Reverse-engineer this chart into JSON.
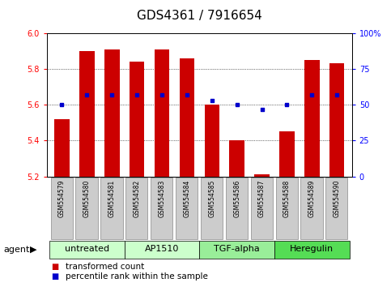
{
  "title": "GDS4361 / 7916654",
  "samples": [
    "GSM554579",
    "GSM554580",
    "GSM554581",
    "GSM554582",
    "GSM554583",
    "GSM554584",
    "GSM554585",
    "GSM554586",
    "GSM554587",
    "GSM554588",
    "GSM554589",
    "GSM554590"
  ],
  "transformed_count": [
    5.52,
    5.9,
    5.91,
    5.84,
    5.91,
    5.86,
    5.6,
    5.4,
    5.21,
    5.45,
    5.85,
    5.83
  ],
  "percentile_rank": [
    50,
    57,
    57,
    57,
    57,
    57,
    53,
    50,
    47,
    50,
    57,
    57
  ],
  "ylim_left": [
    5.2,
    6.0
  ],
  "ylim_right": [
    0,
    100
  ],
  "yticks_left": [
    5.2,
    5.4,
    5.6,
    5.8,
    6.0
  ],
  "yticks_right": [
    0,
    25,
    50,
    75,
    100
  ],
  "ytick_labels_right": [
    "0",
    "25",
    "50",
    "75",
    "100%"
  ],
  "bar_color": "#cc0000",
  "dot_color": "#0000cc",
  "bar_bottom": 5.2,
  "bar_width": 0.6,
  "agents": [
    {
      "label": "untreated",
      "start": 0,
      "end": 3,
      "color": "#ccffcc"
    },
    {
      "label": "AP1510",
      "start": 3,
      "end": 6,
      "color": "#ccffcc"
    },
    {
      "label": "TGF-alpha",
      "start": 6,
      "end": 9,
      "color": "#99ee99"
    },
    {
      "label": "Heregulin",
      "start": 9,
      "end": 12,
      "color": "#55dd55"
    }
  ],
  "agent_label": "agent",
  "legend_items": [
    {
      "label": "transformed count",
      "color": "#cc0000"
    },
    {
      "label": "percentile rank within the sample",
      "color": "#0000cc"
    }
  ],
  "grid_color": "#000000",
  "background_color": "#ffffff",
  "sample_box_color": "#cccccc",
  "title_fontsize": 11,
  "tick_fontsize": 7,
  "legend_fontsize": 7.5,
  "sample_fontsize": 5.5,
  "agent_fontsize": 8
}
